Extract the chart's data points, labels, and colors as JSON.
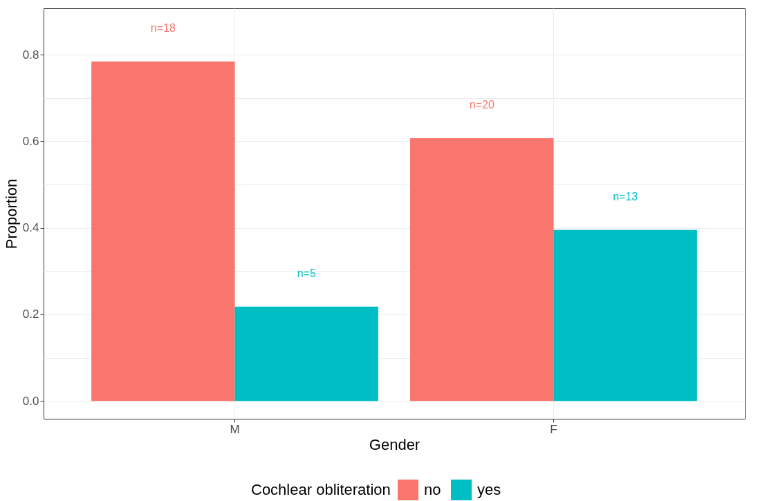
{
  "chart_data": {
    "type": "bar",
    "xlabel": "Gender",
    "ylabel": "Proportion",
    "legend_title": "Cochlear obliteration",
    "categories": [
      "M",
      "F"
    ],
    "series": [
      {
        "name": "no",
        "color": "#f8766d",
        "values": [
          0.784,
          0.607
        ]
      },
      {
        "name": "yes",
        "color": "#00bfc4",
        "values": [
          0.218,
          0.395
        ]
      }
    ],
    "annotations": [
      "n=18",
      "n=20",
      "n=5",
      "n=13"
    ],
    "ylim": [
      -0.041,
      0.907
    ],
    "yticks": [
      {
        "value": 0,
        "label": "0.0"
      },
      {
        "value": 0.1,
        "label": null
      },
      {
        "value": 0.2,
        "label": "0.2"
      },
      {
        "value": 0.3,
        "label": null
      },
      {
        "value": 0.4,
        "label": "0.4"
      },
      {
        "value": 0.5,
        "label": null
      },
      {
        "value": 0.6,
        "label": "0.6"
      },
      {
        "value": 0.7,
        "label": null
      },
      {
        "value": 0.8,
        "label": "0.8"
      }
    ],
    "grid": true,
    "legend": "bottom"
  }
}
